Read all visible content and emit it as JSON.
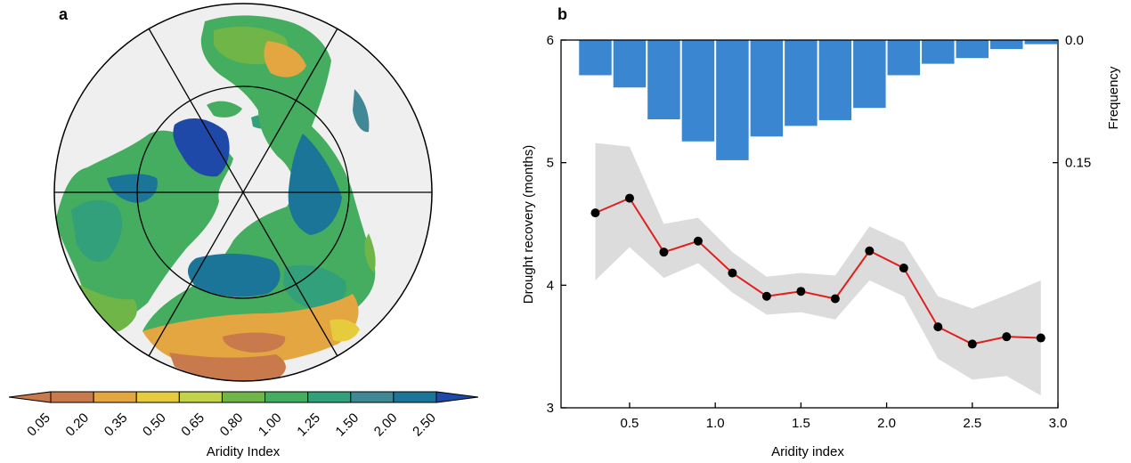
{
  "panels": {
    "a_label": "a",
    "b_label": "b"
  },
  "map": {
    "colorbar_label": "Aridity Index",
    "colorbar_ticks": [
      "0.05",
      "0.20",
      "0.35",
      "0.50",
      "0.65",
      "0.80",
      "1.00",
      "1.25",
      "1.50",
      "2.00",
      "2.50"
    ],
    "colors": [
      "#c97a4c",
      "#e3a640",
      "#e6cc3c",
      "#c3d44c",
      "#6fb548",
      "#44ad60",
      "#32a07a",
      "#418897",
      "#1a7598",
      "#1a5a82",
      "#1f49a8"
    ],
    "ocean_color": "#efefef",
    "projection": "north polar stereographic"
  },
  "chart_data": {
    "type": "line",
    "xlabel": "Aridity index",
    "ylabel": "Drought recovery (months)",
    "y2label": "Frequency",
    "xlim": [
      0.1,
      3.0
    ],
    "ylim": [
      3,
      6
    ],
    "x_ticks": [
      "0.5",
      "1.0",
      "1.5",
      "2.0",
      "2.5",
      "3.0"
    ],
    "y_ticks": [
      "3",
      "4",
      "5",
      "6"
    ],
    "y2_ticks": [
      "0.0",
      "0.15"
    ],
    "y2_scale": "inverted, 0.0 at top, 0.15 at y=5",
    "series": [
      {
        "type": "line",
        "color": "#e02020",
        "marker_color": "#000000",
        "x": [
          0.3,
          0.5,
          0.7,
          0.9,
          1.1,
          1.3,
          1.5,
          1.7,
          1.9,
          2.1,
          2.3,
          2.5,
          2.7,
          2.9
        ],
        "values": [
          4.59,
          4.71,
          4.27,
          4.36,
          4.1,
          3.91,
          3.95,
          3.89,
          4.28,
          4.14,
          3.66,
          3.52,
          3.58,
          3.57
        ],
        "band_lower": [
          4.04,
          4.31,
          4.06,
          4.18,
          3.94,
          3.76,
          3.78,
          3.72,
          4.04,
          3.91,
          3.4,
          3.23,
          3.26,
          3.1
        ],
        "band_upper": [
          5.16,
          5.13,
          4.5,
          4.55,
          4.27,
          4.07,
          4.1,
          4.08,
          4.48,
          4.35,
          3.91,
          3.81,
          3.92,
          4.04
        ],
        "band_color": "#dcdcdc"
      },
      {
        "type": "bar",
        "axis": "y2",
        "color": "#3a86d0",
        "x": [
          0.3,
          0.5,
          0.7,
          0.9,
          1.1,
          1.3,
          1.5,
          1.7,
          1.9,
          2.1,
          2.3,
          2.5,
          2.7,
          2.9
        ],
        "values": [
          0.043,
          0.058,
          0.097,
          0.124,
          0.147,
          0.118,
          0.105,
          0.098,
          0.083,
          0.043,
          0.029,
          0.022,
          0.011,
          0.005
        ]
      }
    ]
  }
}
